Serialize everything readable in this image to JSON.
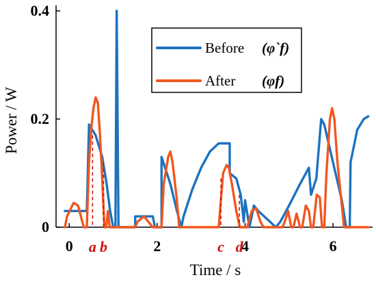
{
  "chart_data": {
    "type": "line",
    "xlabel": "Time / s",
    "ylabel": "Power / W",
    "xlim": [
      -0.3,
      6.9
    ],
    "ylim": [
      0,
      0.41
    ],
    "x_ticks": [
      {
        "value": 0,
        "label": "0"
      },
      {
        "value": 2,
        "label": "2"
      },
      {
        "value": 4,
        "label": "4"
      },
      {
        "value": 6,
        "label": "6"
      }
    ],
    "y_ticks": [
      {
        "value": 0,
        "label": "0"
      },
      {
        "value": 0.2,
        "label": "0.2"
      },
      {
        "value": 0.4,
        "label": "0.4"
      }
    ],
    "legend": {
      "position": "upper-center",
      "entries": [
        {
          "label": "Before",
          "symbol": "(φ`f)",
          "color": "#1c72bf"
        },
        {
          "label": "After",
          "symbol": "(φf)",
          "color": "#f0571f"
        }
      ]
    },
    "series": [
      {
        "name": "Before",
        "color": "#1c72bf",
        "points": [
          [
            -0.1,
            0.03
          ],
          [
            0.4,
            0.03
          ],
          [
            0.45,
            0.19
          ],
          [
            0.6,
            0.17
          ],
          [
            0.75,
            0.13
          ],
          [
            0.85,
            0.08
          ],
          [
            0.93,
            0.03
          ],
          [
            1.0,
            0.0
          ],
          [
            1.05,
            0.0
          ],
          [
            1.08,
            0.4
          ],
          [
            1.12,
            0.0
          ],
          [
            1.5,
            0.0
          ],
          [
            1.5,
            0.02
          ],
          [
            1.9,
            0.02
          ],
          [
            1.95,
            0.0
          ],
          [
            2.1,
            0.0
          ],
          [
            2.1,
            0.13
          ],
          [
            2.3,
            0.08
          ],
          [
            2.45,
            0.03
          ],
          [
            2.55,
            0.0
          ],
          [
            2.6,
            0.02
          ],
          [
            2.8,
            0.07
          ],
          [
            3.0,
            0.11
          ],
          [
            3.2,
            0.14
          ],
          [
            3.4,
            0.155
          ],
          [
            3.65,
            0.155
          ],
          [
            3.65,
            0.1
          ],
          [
            3.8,
            0.09
          ],
          [
            3.9,
            0.06
          ],
          [
            3.97,
            0.01
          ],
          [
            4.0,
            0.05
          ],
          [
            4.1,
            0.0
          ],
          [
            4.2,
            0.04
          ],
          [
            4.3,
            0.03
          ],
          [
            4.5,
            0.015
          ],
          [
            4.7,
            0.0
          ],
          [
            4.8,
            0.01
          ],
          [
            5.0,
            0.04
          ],
          [
            5.25,
            0.08
          ],
          [
            5.45,
            0.11
          ],
          [
            5.5,
            0.06
          ],
          [
            5.62,
            0.09
          ],
          [
            5.73,
            0.2
          ],
          [
            5.8,
            0.19
          ],
          [
            6.0,
            0.12
          ],
          [
            6.2,
            0.05
          ],
          [
            6.3,
            0.0
          ],
          [
            6.38,
            0.0
          ],
          [
            6.4,
            0.12
          ],
          [
            6.55,
            0.18
          ],
          [
            6.7,
            0.2
          ],
          [
            6.8,
            0.205
          ]
        ]
      },
      {
        "name": "After",
        "color": "#f0571f",
        "points": [
          [
            -0.1,
            0.0
          ],
          [
            -0.05,
            0.02
          ],
          [
            0.1,
            0.045
          ],
          [
            0.2,
            0.04
          ],
          [
            0.33,
            0.0
          ],
          [
            0.4,
            0.0
          ],
          [
            0.45,
            0.12
          ],
          [
            0.5,
            0.18
          ],
          [
            0.55,
            0.22
          ],
          [
            0.6,
            0.24
          ],
          [
            0.65,
            0.23
          ],
          [
            0.7,
            0.17
          ],
          [
            0.75,
            0.09
          ],
          [
            0.8,
            0.0
          ],
          [
            0.84,
            0.0
          ],
          [
            0.88,
            0.03
          ],
          [
            0.92,
            0.0
          ],
          [
            1.5,
            0.0
          ],
          [
            1.55,
            0.01
          ],
          [
            1.7,
            0.02
          ],
          [
            1.8,
            0.01
          ],
          [
            1.9,
            0.0
          ],
          [
            2.1,
            0.0
          ],
          [
            2.15,
            0.08
          ],
          [
            2.25,
            0.13
          ],
          [
            2.3,
            0.14
          ],
          [
            2.35,
            0.12
          ],
          [
            2.45,
            0.05
          ],
          [
            2.5,
            0.0
          ],
          [
            3.4,
            0.0
          ],
          [
            3.45,
            0.05
          ],
          [
            3.5,
            0.1
          ],
          [
            3.58,
            0.115
          ],
          [
            3.63,
            0.11
          ],
          [
            3.7,
            0.08
          ],
          [
            3.8,
            0.03
          ],
          [
            3.88,
            0.0
          ],
          [
            4.05,
            0.0
          ],
          [
            4.15,
            0.03
          ],
          [
            4.25,
            0.035
          ],
          [
            4.35,
            0.01
          ],
          [
            4.42,
            0.0
          ],
          [
            4.85,
            0.0
          ],
          [
            4.9,
            0.01
          ],
          [
            4.98,
            0.03
          ],
          [
            5.05,
            0.0
          ],
          [
            5.1,
            0.0
          ],
          [
            5.17,
            0.025
          ],
          [
            5.25,
            0.0
          ],
          [
            5.3,
            0.0
          ],
          [
            5.38,
            0.04
          ],
          [
            5.45,
            0.03
          ],
          [
            5.5,
            0.0
          ],
          [
            5.55,
            0.0
          ],
          [
            5.63,
            0.06
          ],
          [
            5.7,
            0.055
          ],
          [
            5.75,
            0.0
          ],
          [
            5.8,
            0.0
          ],
          [
            5.85,
            0.1
          ],
          [
            5.93,
            0.2
          ],
          [
            5.98,
            0.22
          ],
          [
            6.03,
            0.2
          ],
          [
            6.1,
            0.12
          ],
          [
            6.2,
            0.04
          ],
          [
            6.25,
            0.0
          ],
          [
            6.8,
            0.0
          ]
        ]
      }
    ],
    "annotations": {
      "color": "#d10f0f",
      "markers": [
        {
          "label": "a",
          "x": 0.53,
          "y": 0.17
        },
        {
          "label": "b",
          "x": 0.78,
          "y": 0.12
        },
        {
          "label": "c",
          "x": 3.45,
          "y": 0.09
        },
        {
          "label": "d",
          "x": 3.87,
          "y": 0.06
        }
      ]
    }
  }
}
